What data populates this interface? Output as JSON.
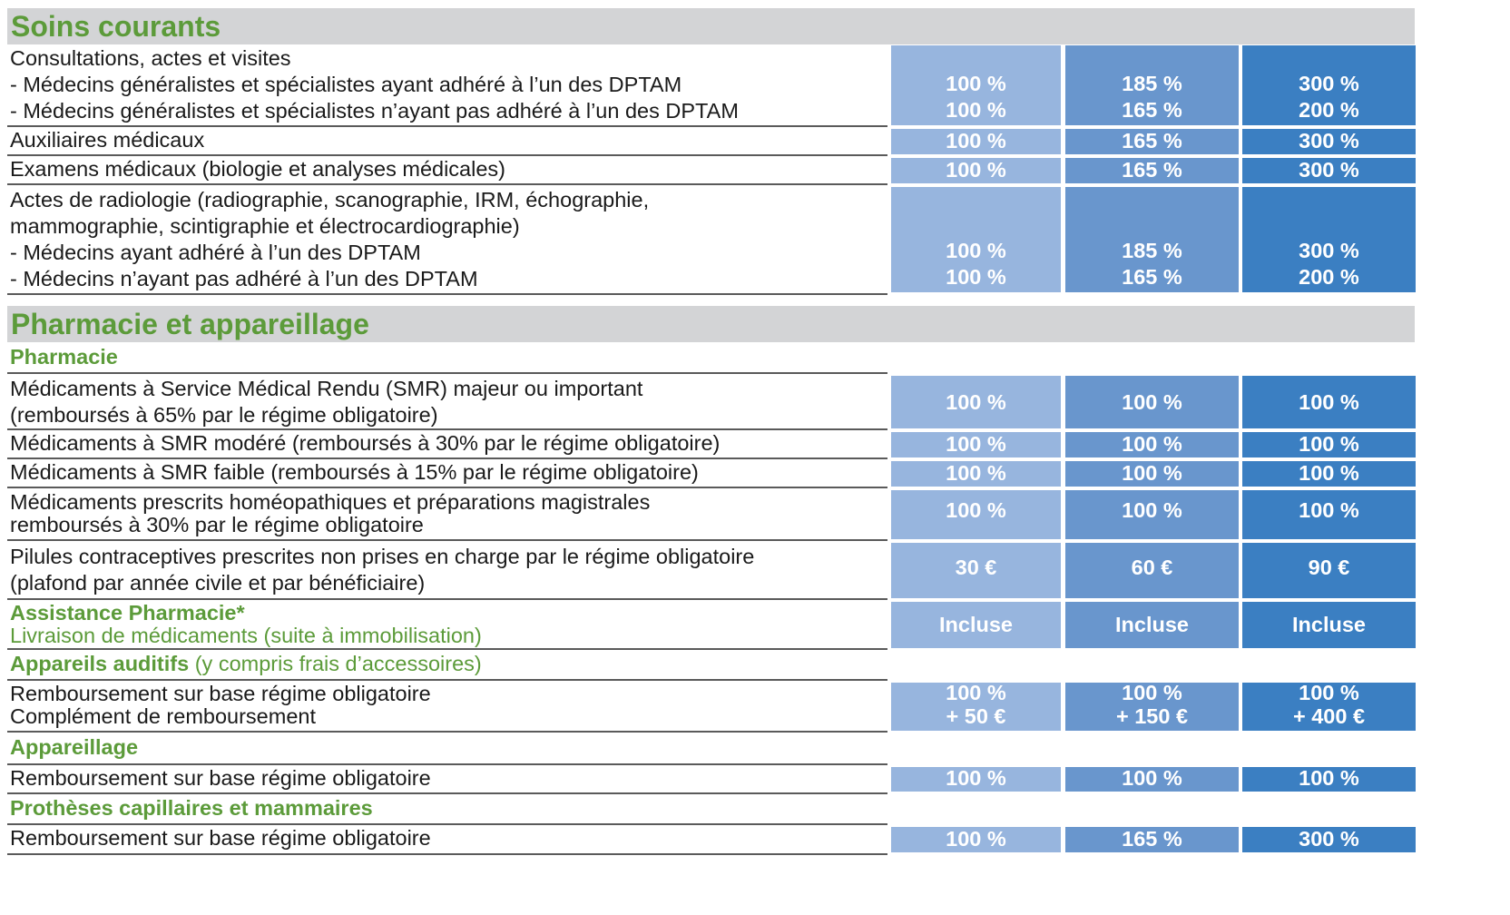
{
  "sections": {
    "soins": {
      "title": "Soins courants"
    },
    "pharma": {
      "title": "Pharmacie et appareillage"
    }
  },
  "rows": {
    "consult": {
      "lines": [
        "Consultations, actes et visites",
        "- Médecins généralistes et spécialistes ayant adhéré à l’un des DPTAM",
        "- Médecins généralistes et spécialistes n’ayant pas adhéré à l’un des DPTAM"
      ],
      "values": [
        [
          "100 %",
          "100 %"
        ],
        [
          "185 %",
          "165 %"
        ],
        [
          "300 %",
          "200 %"
        ]
      ]
    },
    "auxiliaires": {
      "lines": [
        "Auxiliaires médicaux"
      ],
      "values": [
        [
          "100 %"
        ],
        [
          "165 %"
        ],
        [
          "300 %"
        ]
      ]
    },
    "examens": {
      "lines": [
        "Examens médicaux (biologie et analyses médicales)"
      ],
      "values": [
        [
          "100 %"
        ],
        [
          "165 %"
        ],
        [
          "300 %"
        ]
      ]
    },
    "radiologie": {
      "lines": [
        "Actes de radiologie (radiographie, scanographie, IRM, échographie,",
        "mammographie, scintigraphie et électrocardiographie)",
        "- Médecins ayant adhéré à l’un des DPTAM",
        "- Médecins n’ayant pas adhéré à l’un des DPTAM"
      ],
      "values": [
        [
          "100 %",
          "100 %"
        ],
        [
          "185 %",
          "165 %"
        ],
        [
          "300 %",
          "200 %"
        ]
      ]
    },
    "pharmacie_sub": {
      "lines": [
        "Pharmacie"
      ]
    },
    "smr_majeur": {
      "lines": [
        "Médicaments à Service Médical Rendu (SMR) majeur ou important",
        "(remboursés à 65% par le régime obligatoire)"
      ],
      "values": [
        [
          "100 %"
        ],
        [
          "100 %"
        ],
        [
          "100 %"
        ]
      ]
    },
    "smr_modere": {
      "lines": [
        "Médicaments à SMR modéré (remboursés à 30% par le régime obligatoire)"
      ],
      "values": [
        [
          "100 %"
        ],
        [
          "100 %"
        ],
        [
          "100 %"
        ]
      ]
    },
    "smr_faible": {
      "lines": [
        "Médicaments à SMR faible (remboursés à 15% par le régime obligatoire)"
      ],
      "values": [
        [
          "100 %"
        ],
        [
          "100 %"
        ],
        [
          "100 %"
        ]
      ]
    },
    "homeo": {
      "lines": [
        "Médicaments prescrits homéopathiques et préparations magistrales",
        "remboursés à 30% par le régime obligatoire"
      ],
      "values": [
        [
          "100 %"
        ],
        [
          "100 %"
        ],
        [
          "100 %"
        ]
      ]
    },
    "pilules": {
      "lines": [
        "Pilules contraceptives prescrites non prises en charge par le régime obligatoire",
        "(plafond par année civile et par bénéficiaire)"
      ],
      "values": [
        [
          "30 €"
        ],
        [
          "60 €"
        ],
        [
          "90 €"
        ]
      ]
    },
    "assistance": {
      "lines": [
        "Assistance Pharmacie*",
        "Livraison de médicaments (suite à immobilisation)"
      ],
      "values": [
        [
          "Incluse"
        ],
        [
          "Incluse"
        ],
        [
          "Incluse"
        ]
      ]
    },
    "auditifs_sub": {
      "bold": "Appareils auditifs",
      "rest": " (y compris frais d’accessoires)"
    },
    "auditifs": {
      "lines": [
        "Remboursement sur base régime obligatoire",
        "Complément de remboursement"
      ],
      "values": [
        [
          "100 %",
          "+ 50 €"
        ],
        [
          "100 %",
          "+ 150 €"
        ],
        [
          "100 %",
          "+ 400 €"
        ]
      ]
    },
    "appareillage_sub": {
      "lines": [
        "Appareillage"
      ]
    },
    "appareillage": {
      "lines": [
        "Remboursement sur base régime obligatoire"
      ],
      "values": [
        [
          "100 %"
        ],
        [
          "100 %"
        ],
        [
          "100 %"
        ]
      ]
    },
    "protheses_sub": {
      "lines": [
        "Prothèses capillaires et mammaires"
      ]
    },
    "protheses": {
      "lines": [
        "Remboursement sur base régime obligatoire"
      ],
      "values": [
        [
          "100 %"
        ],
        [
          "165 %"
        ],
        [
          "300 %"
        ]
      ]
    }
  }
}
